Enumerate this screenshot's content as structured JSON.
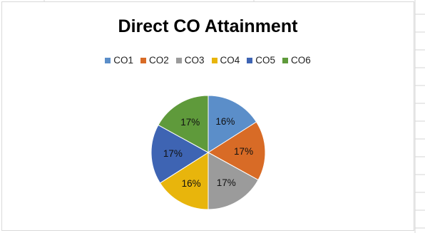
{
  "chart_data": {
    "type": "pie",
    "title": "Direct CO Attainment",
    "legend_position": "top",
    "categories": [
      "CO1",
      "CO2",
      "CO3",
      "CO4",
      "CO5",
      "CO6"
    ],
    "values": [
      16,
      17,
      17,
      16,
      17,
      17
    ],
    "labels": [
      "16%",
      "17%",
      "17%",
      "16%",
      "17%",
      "17%"
    ],
    "colors": [
      "#5b8ec9",
      "#d86b26",
      "#9b9b9b",
      "#e8b50c",
      "#3e64b3",
      "#5f9a3b"
    ]
  }
}
